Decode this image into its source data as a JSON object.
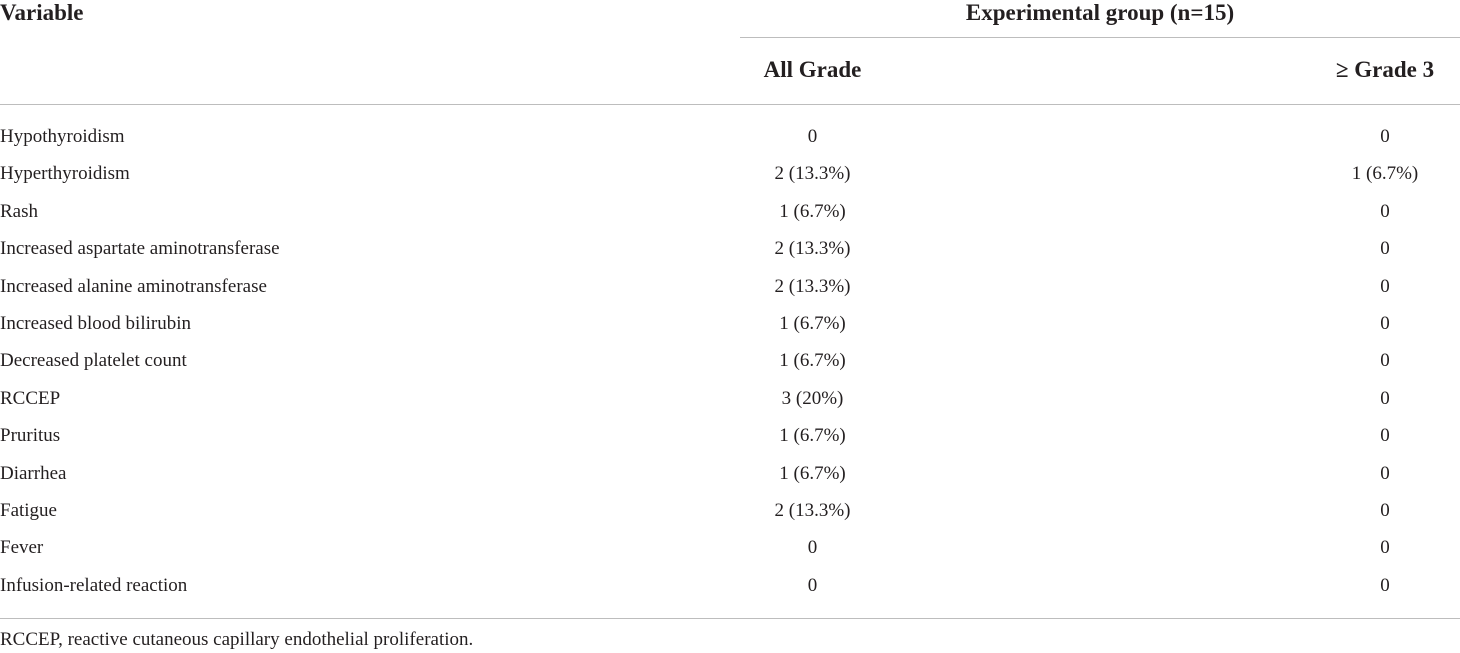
{
  "table": {
    "header": {
      "variable": "Variable",
      "group": "Experimental group (n=15)",
      "all_grade": "All Grade",
      "grade3": "≥ Grade 3"
    },
    "rows": [
      {
        "variable": "Hypothyroidism",
        "all_grade": "0",
        "grade3": "0"
      },
      {
        "variable": "Hyperthyroidism",
        "all_grade": "2 (13.3%)",
        "grade3": "1 (6.7%)"
      },
      {
        "variable": "Rash",
        "all_grade": "1 (6.7%)",
        "grade3": "0"
      },
      {
        "variable": "Increased aspartate aminotransferase",
        "all_grade": "2 (13.3%)",
        "grade3": "0"
      },
      {
        "variable": "Increased alanine aminotransferase",
        "all_grade": "2 (13.3%)",
        "grade3": "0"
      },
      {
        "variable": "Increased blood bilirubin",
        "all_grade": "1 (6.7%)",
        "grade3": "0"
      },
      {
        "variable": "Decreased platelet count",
        "all_grade": "1 (6.7%)",
        "grade3": "0"
      },
      {
        "variable": "RCCEP",
        "all_grade": "3 (20%)",
        "grade3": "0"
      },
      {
        "variable": "Pruritus",
        "all_grade": "1 (6.7%)",
        "grade3": "0"
      },
      {
        "variable": "Diarrhea",
        "all_grade": "1 (6.7%)",
        "grade3": "0"
      },
      {
        "variable": "Fatigue",
        "all_grade": "2 (13.3%)",
        "grade3": "0"
      },
      {
        "variable": "Fever",
        "all_grade": "0",
        "grade3": "0"
      },
      {
        "variable": "Infusion-related reaction",
        "all_grade": "0",
        "grade3": "0"
      }
    ],
    "footnote": "RCCEP, reactive cutaneous capillary endothelial proliferation."
  }
}
